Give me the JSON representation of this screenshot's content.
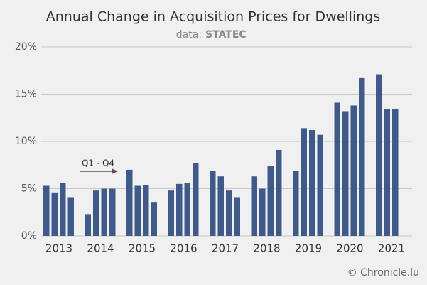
{
  "chart_data": {
    "type": "grouped_bar",
    "title": "Annual Change in Acquisition Prices for Dwellings",
    "source": {
      "label": "data:",
      "name": "STATEC"
    },
    "annotation": "Q1 - Q4",
    "credit": "© Chronicle.lu",
    "categories": [
      "2013",
      "2014",
      "2015",
      "2016",
      "2017",
      "2018",
      "2019",
      "2020",
      "2021"
    ],
    "values": [
      [
        5.3,
        4.6,
        5.6,
        4.1
      ],
      [
        2.3,
        4.8,
        5.0,
        5.0
      ],
      [
        7.0,
        5.3,
        5.4,
        3.6
      ],
      [
        4.8,
        5.5,
        5.6,
        7.7
      ],
      [
        6.9,
        6.3,
        4.8,
        4.1
      ],
      [
        6.3,
        5.0,
        7.4,
        9.1
      ],
      [
        6.9,
        11.4,
        11.2,
        10.7
      ],
      [
        14.1,
        13.2,
        13.8,
        16.7
      ],
      [
        17.1,
        13.4,
        13.4,
        null
      ]
    ],
    "color": "#3d5a8a",
    "ylim": [
      0,
      20
    ],
    "yticks": [
      {
        "value": 0,
        "label": "0%"
      },
      {
        "value": 5,
        "label": "5%"
      },
      {
        "value": 10,
        "label": "10%"
      },
      {
        "value": 15,
        "label": "15%"
      },
      {
        "value": 20,
        "label": "20%"
      }
    ],
    "grid": true
  }
}
